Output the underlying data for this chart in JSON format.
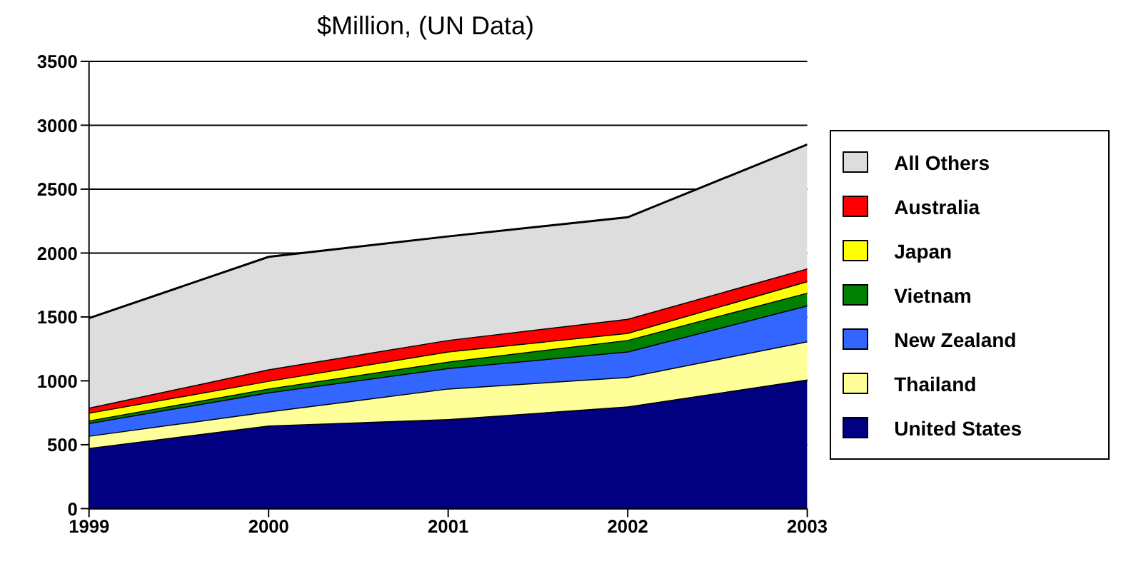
{
  "chart_data": {
    "type": "area",
    "stacked": true,
    "title": "$Million, (UN Data)",
    "x": [
      1999,
      2000,
      2001,
      2002,
      2003
    ],
    "xlim": [
      1999,
      2003
    ],
    "xticks": [
      1999,
      2000,
      2001,
      2002,
      2003
    ],
    "ylim": [
      0,
      3500
    ],
    "yticks": [
      0,
      500,
      1000,
      1500,
      2000,
      2500,
      3000,
      3500
    ],
    "grid": "y",
    "legend": "right",
    "series": [
      {
        "name": "United States",
        "color": "#000080",
        "values": [
          475,
          650,
          700,
          800,
          1010
        ]
      },
      {
        "name": "Thailand",
        "color": "#ffff99",
        "values": [
          95,
          110,
          240,
          230,
          300
        ]
      },
      {
        "name": "New Zealand",
        "color": "#3366ff",
        "values": [
          100,
          150,
          160,
          200,
          280
        ]
      },
      {
        "name": "Vietnam",
        "color": "#008000",
        "values": [
          20,
          30,
          50,
          90,
          100
        ]
      },
      {
        "name": "Japan",
        "color": "#ffff00",
        "values": [
          60,
          60,
          80,
          55,
          90
        ]
      },
      {
        "name": "Australia",
        "color": "#ff0000",
        "values": [
          40,
          90,
          90,
          110,
          100
        ]
      },
      {
        "name": "All Others",
        "color": "#dddddd",
        "values": [
          700,
          880,
          810,
          795,
          970
        ]
      }
    ]
  }
}
